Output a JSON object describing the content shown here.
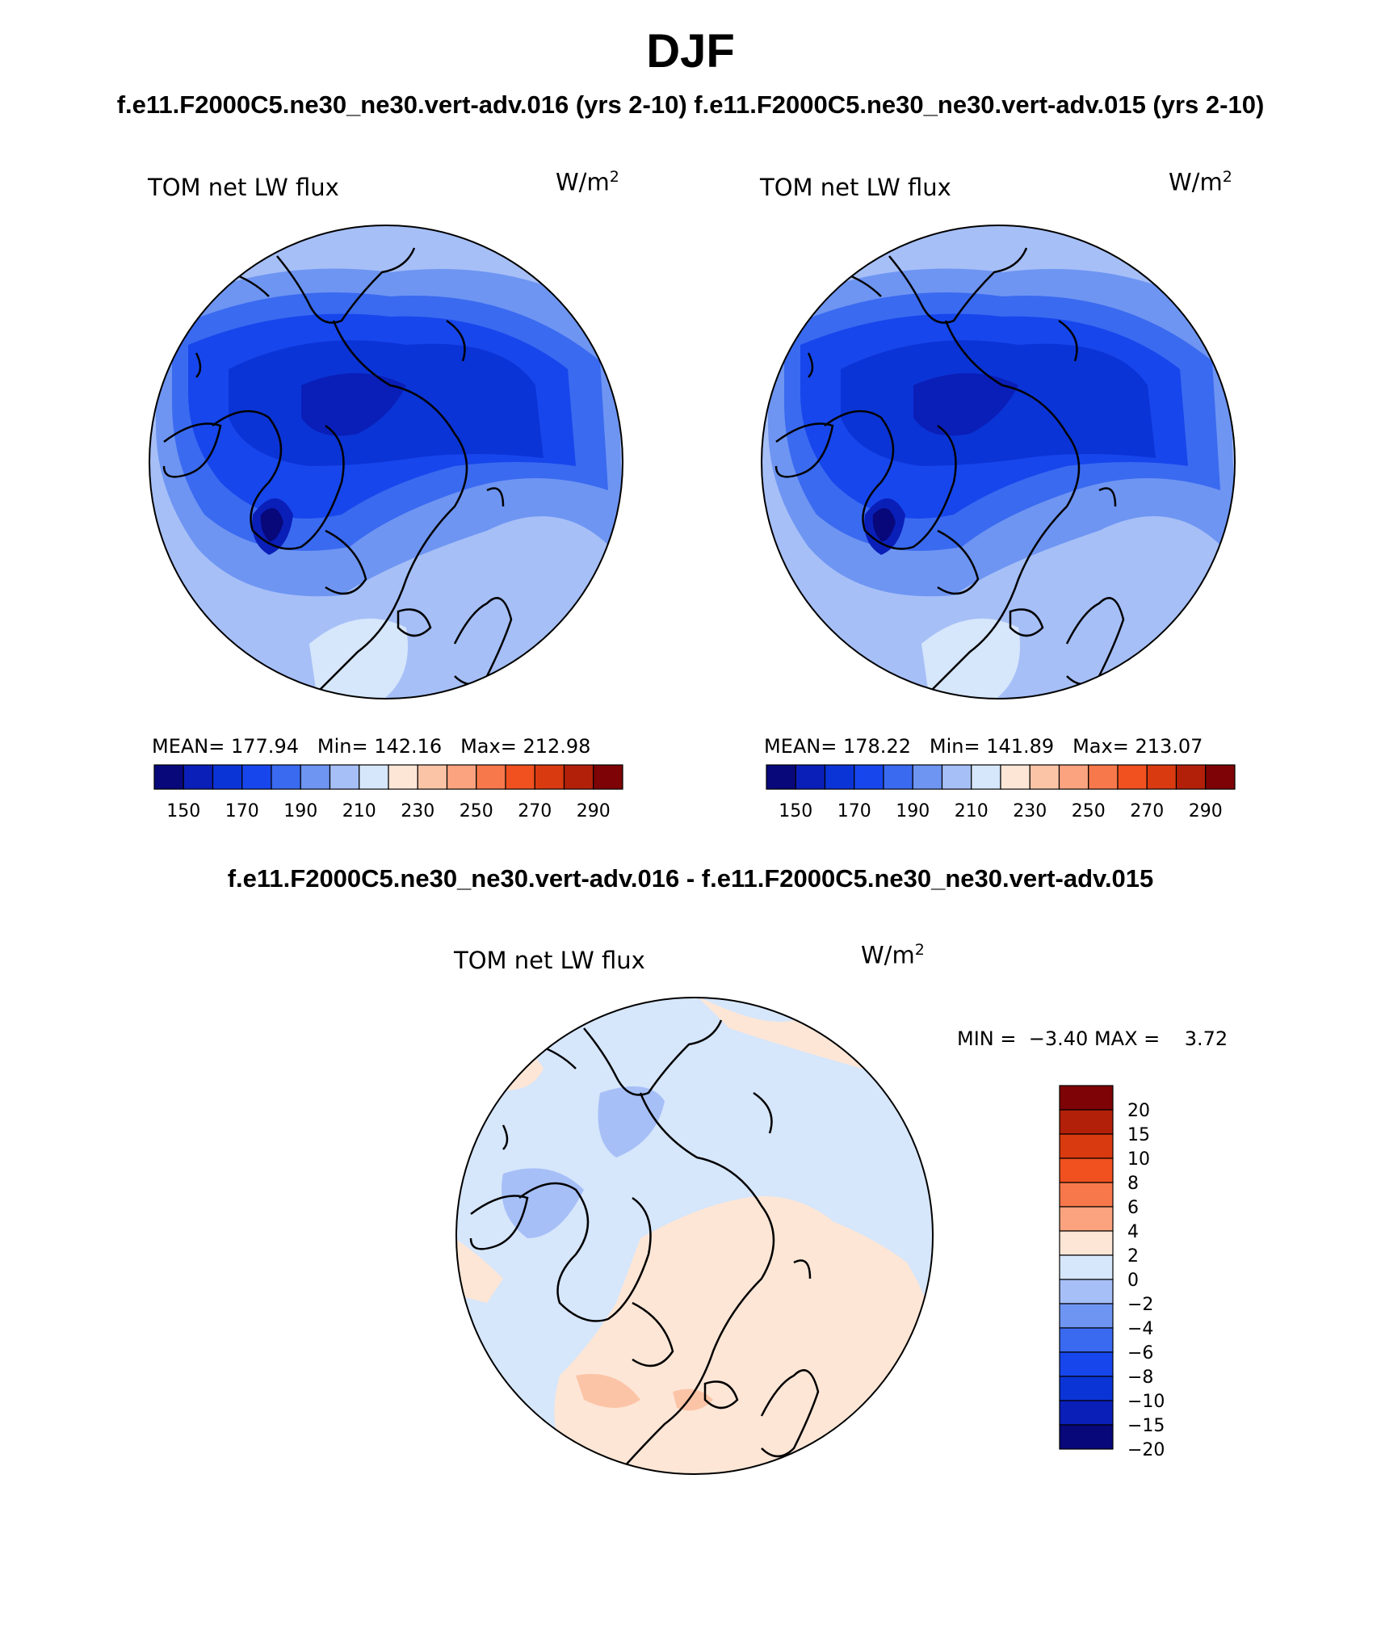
{
  "header": {
    "title": "DJF",
    "subtitle": "f.e11.F2000C5.ne30_ne30.vert-adv.016 (yrs 2-10)  f.e11.F2000C5.ne30_ne30.vert-adv.015 (yrs 2-10)"
  },
  "panels": [
    {
      "variable": "TOM net LW flux",
      "units": "W/m",
      "units_sup": "2",
      "stats": {
        "mean_label": "MEAN=",
        "mean": "177.94",
        "min_label": "Min=",
        "min": "142.16",
        "max_label": "Max=",
        "max": "212.98"
      }
    },
    {
      "variable": "TOM net LW flux",
      "units": "W/m",
      "units_sup": "2",
      "stats": {
        "mean_label": "MEAN=",
        "mean": "178.22",
        "min_label": "Min=",
        "min": "141.89",
        "max_label": "Max=",
        "max": "213.07"
      }
    }
  ],
  "abs_colorbar": {
    "colors": [
      "#08087a",
      "#0a1fb8",
      "#0b34d6",
      "#1746ec",
      "#3a6af0",
      "#6e95f2",
      "#a6bff7",
      "#d6e6fb",
      "#fde6d6",
      "#fcc4a7",
      "#fba37f",
      "#f7784b",
      "#f1511f",
      "#d93a10",
      "#b2200a",
      "#7d0306"
    ],
    "labels": [
      "150",
      "170",
      "190",
      "210",
      "230",
      "250",
      "270",
      "290"
    ]
  },
  "diff": {
    "title": "f.e11.F2000C5.ne30_ne30.vert-adv.016 - f.e11.F2000C5.ne30_ne30.vert-adv.015",
    "variable": "TOM net LW flux",
    "units": "W/m",
    "units_sup": "2",
    "min_label": "MIN =",
    "min": "−3.40",
    "max_label": "MAX =",
    "max": "3.72"
  },
  "diff_colorbar": {
    "colors": [
      "#7d0306",
      "#b2200a",
      "#d93a10",
      "#f1511f",
      "#f7784b",
      "#fba37f",
      "#fde6d6",
      "#d6e6fb",
      "#a6bff7",
      "#6e95f2",
      "#3a6af0",
      "#1746ec",
      "#0b34d6",
      "#0a1fb8",
      "#08087a"
    ],
    "labels": [
      "20",
      "15",
      "10",
      "8",
      "6",
      "4",
      "2",
      "0",
      "−2",
      "−4",
      "−6",
      "−8",
      "−10",
      "−15",
      "−20"
    ]
  }
}
